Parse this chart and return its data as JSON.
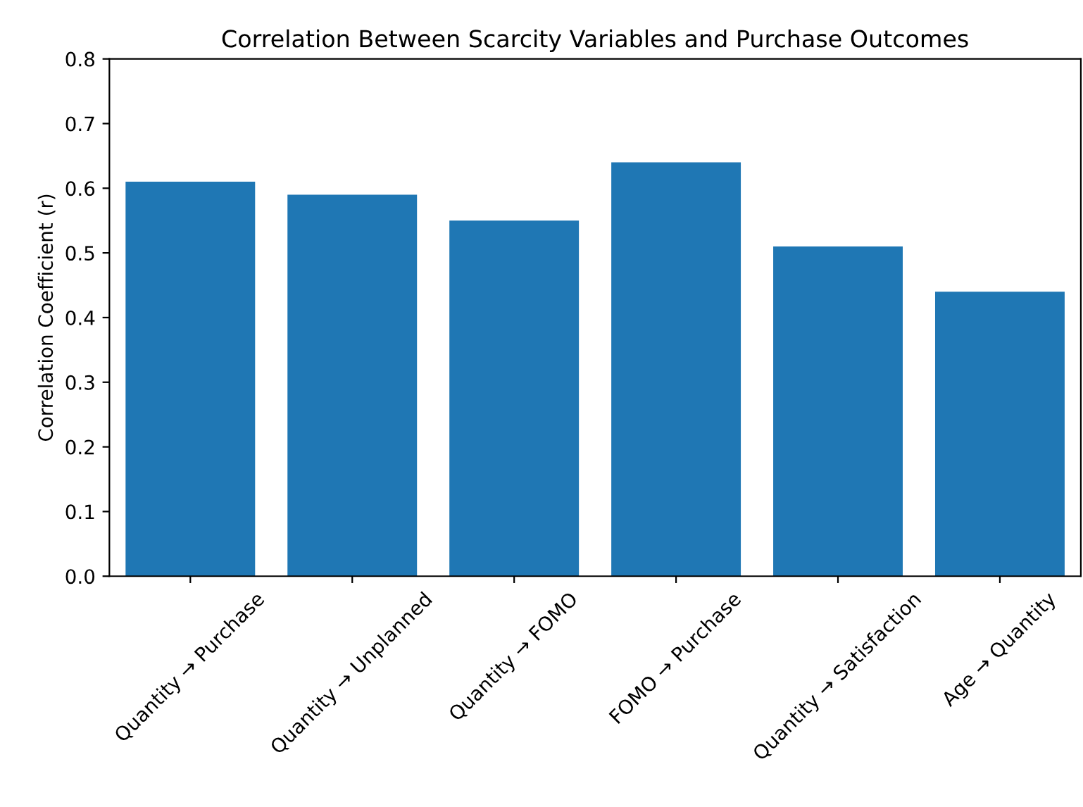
{
  "chart_data": {
    "type": "bar",
    "title": "Correlation Between Scarcity Variables and Purchase Outcomes",
    "ylabel": "Correlation Coefficient (r)",
    "categories": [
      "Quantity → Purchase",
      "Quantity → Unplanned",
      "Quantity → FOMO",
      "FOMO → Purchase",
      "Quantity → Satisfaction",
      "Age → Quantity"
    ],
    "values": [
      0.61,
      0.59,
      0.55,
      0.64,
      0.51,
      0.44
    ],
    "color": "#1f77b4",
    "ylim": [
      0,
      0.8
    ],
    "yticks": [
      {
        "value": 0,
        "label": "0.0"
      },
      {
        "value": 0.1,
        "label": "0.1"
      },
      {
        "value": 0.2,
        "label": "0.2"
      },
      {
        "value": 0.3,
        "label": "0.3"
      },
      {
        "value": 0.4,
        "label": "0.4"
      },
      {
        "value": 0.5,
        "label": "0.5"
      },
      {
        "value": 0.6,
        "label": "0.6"
      },
      {
        "value": 0.7,
        "label": "0.7"
      },
      {
        "value": 0.8,
        "label": "0.8"
      }
    ],
    "grid": false
  }
}
